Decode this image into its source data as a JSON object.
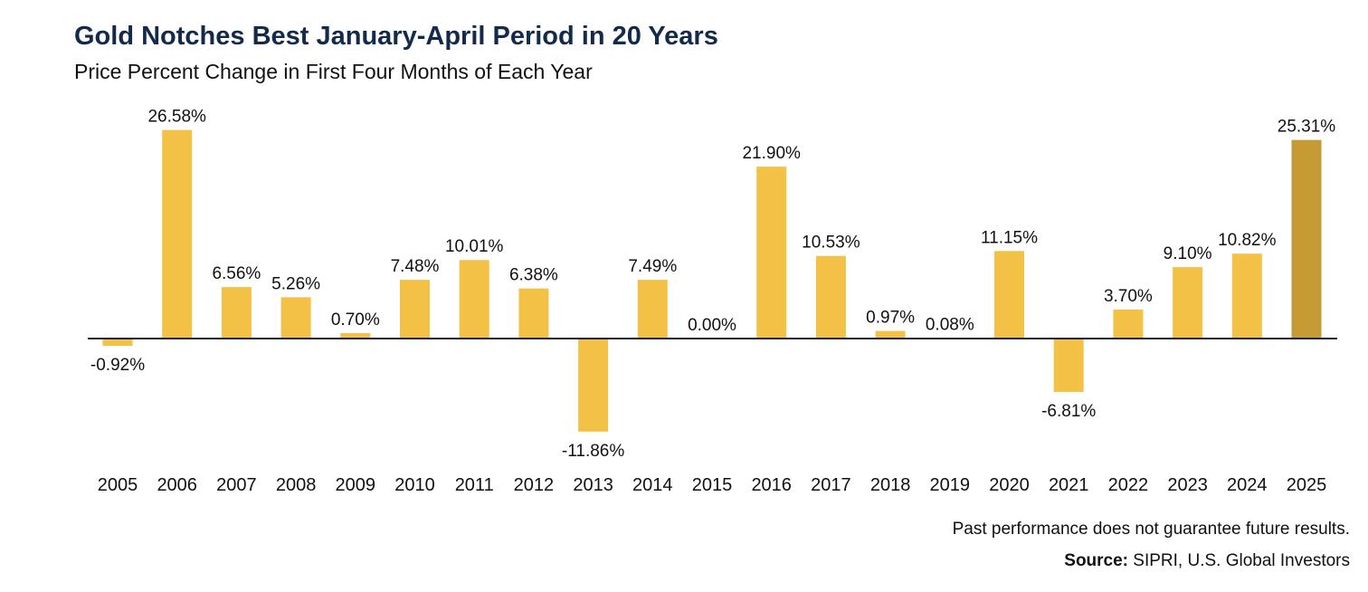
{
  "colors": {
    "bar": "#f3c145",
    "highlight_bar": "#c69b35",
    "title": "#142a4a",
    "axis": "#222222",
    "text": "#111111"
  },
  "footer": {
    "note": "Past performance does not guarantee future results.",
    "source_label": "Source:",
    "source_text": " SIPRI, U.S. Global Investors"
  },
  "chart_data": {
    "type": "bar",
    "title": "Gold Notches Best January-April Period in 20 Years",
    "subtitle": "Price Percent Change in First Four Months of Each Year",
    "categories": [
      "2005",
      "2006",
      "2007",
      "2008",
      "2009",
      "2010",
      "2011",
      "2012",
      "2013",
      "2014",
      "2015",
      "2016",
      "2017",
      "2018",
      "2019",
      "2020",
      "2021",
      "2022",
      "2023",
      "2024",
      "2025"
    ],
    "values": [
      -0.92,
      26.58,
      6.56,
      5.26,
      0.7,
      7.48,
      10.01,
      6.38,
      -11.86,
      7.49,
      0.0,
      21.9,
      10.53,
      0.97,
      0.08,
      11.15,
      -6.81,
      3.7,
      9.1,
      10.82,
      25.31
    ],
    "labels": [
      "-0.92%",
      "26.58%",
      "6.56%",
      "5.26%",
      "0.70%",
      "7.48%",
      "10.01%",
      "6.38%",
      "-11.86%",
      "7.49%",
      "0.00%",
      "21.90%",
      "10.53%",
      "0.97%",
      "0.08%",
      "11.15%",
      "-6.81%",
      "3.70%",
      "9.10%",
      "10.82%",
      "25.31%"
    ],
    "highlight_category": "2025",
    "ylim": [
      -14,
      28
    ],
    "grid": false,
    "legend": "none",
    "xlabel": "",
    "ylabel": ""
  }
}
